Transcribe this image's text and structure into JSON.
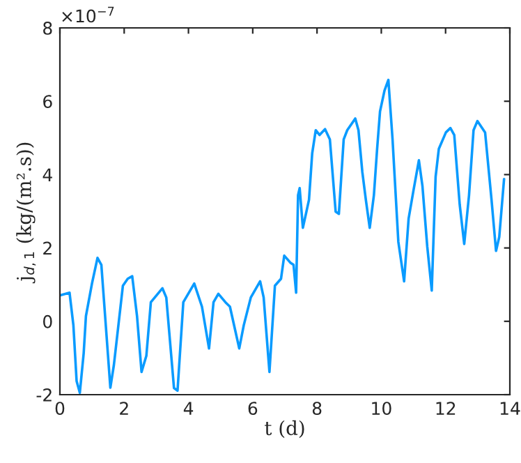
{
  "chart_data": {
    "type": "line",
    "xlabel": "t (d)",
    "ylabel": "j$_{d,1}$ (kg/(m².s))",
    "annotations": [
      "×10$^{−7}$"
    ],
    "xlim": [
      0,
      14
    ],
    "xticks": [
      0,
      2,
      4,
      6,
      8,
      10,
      12,
      14
    ],
    "ylim": [
      -2,
      8
    ],
    "yticks": [
      {
        "value": -2,
        "label": "-2"
      },
      0,
      2,
      4,
      6,
      8
    ],
    "grid": false,
    "legend": false,
    "marker": "none",
    "line_style": "solid",
    "series": [
      {
        "color": "#0a9bff",
        "x": [
          0.01,
          0.3,
          0.42,
          0.52,
          0.62,
          0.74,
          0.81,
          1.0,
          1.17,
          1.29,
          1.57,
          1.68,
          1.96,
          2.11,
          2.25,
          2.4,
          2.54,
          2.69,
          2.83,
          3.19,
          3.31,
          3.55,
          3.66,
          3.84,
          4.18,
          4.42,
          4.64,
          4.78,
          4.93,
          5.15,
          5.29,
          5.58,
          5.72,
          5.94,
          6.23,
          6.34,
          6.52,
          6.69,
          6.88,
          6.98,
          7.17,
          7.27,
          7.35,
          7.41,
          7.46,
          7.56,
          7.67,
          7.75,
          7.85,
          7.96,
          8.08,
          8.25,
          8.4,
          8.58,
          8.68,
          8.83,
          8.94,
          9.19,
          9.29,
          9.41,
          9.52,
          9.64,
          9.77,
          9.87,
          9.96,
          10.1,
          10.22,
          10.35,
          10.53,
          10.71,
          10.85,
          11.0,
          11.17,
          11.28,
          11.43,
          11.57,
          11.69,
          11.79,
          12.01,
          12.15,
          12.27,
          12.44,
          12.58,
          12.73,
          12.87,
          12.99,
          13.23,
          13.43,
          13.57,
          13.67,
          13.82
        ],
        "values": [
          0.71,
          0.78,
          -0.11,
          -1.63,
          -1.95,
          -0.87,
          0.14,
          1.04,
          1.73,
          1.54,
          -1.81,
          -1.19,
          0.97,
          1.16,
          1.23,
          0.14,
          -1.38,
          -0.94,
          0.52,
          0.9,
          0.65,
          -1.82,
          -1.89,
          0.52,
          1.03,
          0.4,
          -0.74,
          0.52,
          0.75,
          0.52,
          0.4,
          -0.74,
          -0.11,
          0.65,
          1.09,
          0.65,
          -1.38,
          0.97,
          1.16,
          1.79,
          1.6,
          1.54,
          0.78,
          3.44,
          3.63,
          2.55,
          2.99,
          3.31,
          4.58,
          5.21,
          5.08,
          5.24,
          4.96,
          2.99,
          2.93,
          4.96,
          5.21,
          5.53,
          5.21,
          4.07,
          3.31,
          2.55,
          3.44,
          4.7,
          5.72,
          6.29,
          6.58,
          4.96,
          2.17,
          1.09,
          2.8,
          3.56,
          4.39,
          3.69,
          2.04,
          0.84,
          3.94,
          4.7,
          5.15,
          5.27,
          5.08,
          3.18,
          2.11,
          3.44,
          5.21,
          5.46,
          5.15,
          3.31,
          1.92,
          2.3,
          3.88
        ]
      }
    ]
  }
}
